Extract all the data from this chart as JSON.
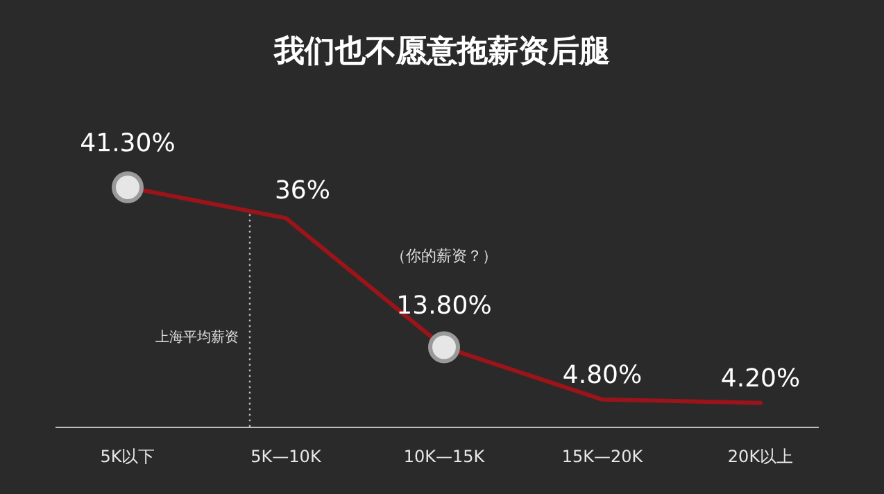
{
  "chart_data": {
    "type": "line",
    "title": "我们也不愿意拖薪资后腿",
    "categories": [
      "5K以下",
      "5K—10K",
      "10K—15K",
      "15K—20K",
      "20K以上"
    ],
    "series": [
      {
        "color": "#9b1419",
        "marker": "none",
        "line_style": "solid",
        "values": [
          41.3,
          36,
          13.8,
          4.8,
          4.2
        ],
        "value_labels": [
          "41.30%",
          "36%",
          "13.80%",
          "4.80%",
          "4.20%"
        ]
      },
      {
        "type": "scatter",
        "color": "#e6e6e6",
        "marker": "circle",
        "x": [
          "5K以下",
          "10K—15K"
        ],
        "values": [
          41.3,
          13.8
        ]
      }
    ],
    "annotations": [
      "（你的薪资？）",
      "上海平均薪资"
    ]
  }
}
